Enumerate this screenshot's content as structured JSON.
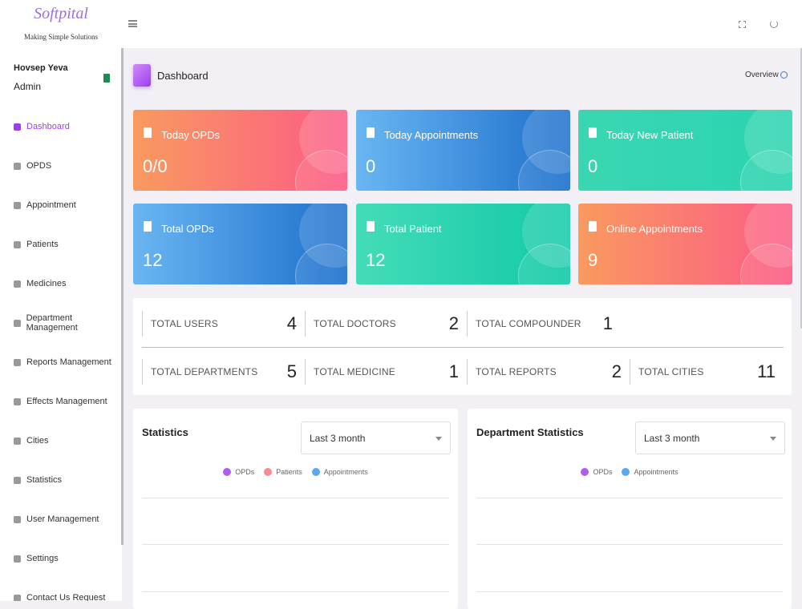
{
  "brand": {
    "name": "Softpital",
    "tagline": "Making Simple Solutions"
  },
  "user": {
    "name": "Hovsep Yeva",
    "role": "Admin"
  },
  "menu": [
    "Dashboard",
    "OPDS",
    "Appointment",
    "Patients",
    "Medicines",
    "Department Management",
    "Reports Management",
    "Effects Management",
    "Cities",
    "Statistics",
    "User Management",
    "Settings",
    "Contact Us Request"
  ],
  "header": {
    "title": "Dashboard",
    "link": "Overview"
  },
  "cards": [
    {
      "title": "Today OPDs",
      "value": "0/0"
    },
    {
      "title": "Today Appointments",
      "value": 0
    },
    {
      "title": "Today New Patient",
      "value": 0
    },
    {
      "title": "Total OPDs",
      "value": 12
    },
    {
      "title": "Total Patient",
      "value": 12
    },
    {
      "title": "Online Appointments",
      "value": 9
    }
  ],
  "totals": [
    [
      {
        "label": "TOTAL USERS",
        "value": 4
      },
      {
        "label": "TOTAL DOCTORS",
        "value": 2
      },
      {
        "label": "TOTAL COMPOUNDER",
        "value": 1
      }
    ],
    [
      {
        "label": "TOTAL DEPARTMENTS",
        "value": 5
      },
      {
        "label": "TOTAL MEDICINE",
        "value": 1
      },
      {
        "label": "TOTAL REPORTS",
        "value": 2
      },
      {
        "label": "TOTAL CITIES",
        "value": 11
      }
    ]
  ],
  "panels": [
    {
      "title": "Statistics",
      "select": "Last 3 month",
      "legend": [
        {
          "name": "OPDs",
          "color": "#b15cf0"
        },
        {
          "name": "Patients",
          "color": "#f78c8c"
        },
        {
          "name": "Appointments",
          "color": "#5aa9ee"
        }
      ]
    },
    {
      "title": "Department Statistics",
      "select": "Last 3 month",
      "legend": [
        {
          "name": "OPDs",
          "color": "#b15cf0"
        },
        {
          "name": "Appointments",
          "color": "#5aa9ee"
        }
      ]
    }
  ]
}
